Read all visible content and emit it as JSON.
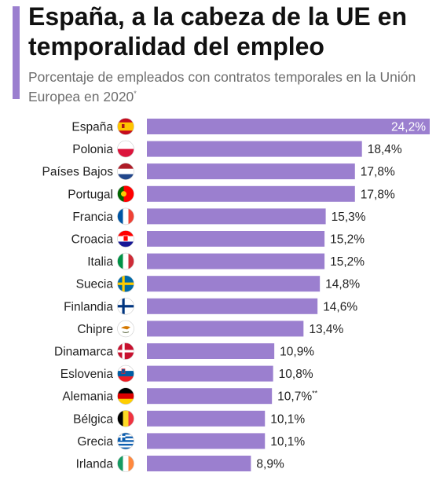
{
  "header": {
    "title": "España, a la cabeza de la UE en temporalidad del empleo",
    "subtitle": "Porcentaje de empleados con contratos temporales en la Unión Europea en 2020",
    "subtitle_marker": "*"
  },
  "colors": {
    "accent": "#9b7fcf",
    "bar": "#9b7fcf"
  },
  "chart_data": {
    "type": "bar",
    "orientation": "horizontal",
    "title": "España, a la cabeza de la UE en temporalidad del empleo",
    "subtitle": "Porcentaje de empleados con contratos temporales en la Unión Europea en 2020*",
    "categories": [
      "España",
      "Polonia",
      "Países Bajos",
      "Portugal",
      "Francia",
      "Croacia",
      "Italia",
      "Suecia",
      "Finlandia",
      "Chipre",
      "Dinamarca",
      "Eslovenia",
      "Alemania",
      "Bélgica",
      "Grecia",
      "Irlanda"
    ],
    "values": [
      24.2,
      18.4,
      17.8,
      17.8,
      15.3,
      15.2,
      15.2,
      14.8,
      14.6,
      13.4,
      10.9,
      10.8,
      10.7,
      10.1,
      10.1,
      8.9
    ],
    "value_labels": [
      "24,2%",
      "18,4%",
      "17,8%",
      "17,8%",
      "15,3%",
      "15,2%",
      "15,2%",
      "14,8%",
      "14,6%",
      "13,4%",
      "10,9%",
      "10,8%",
      "10,7%",
      "10,1%",
      "10,1%",
      "8,9%"
    ],
    "value_label_markers": [
      "",
      "",
      "",
      "",
      "",
      "",
      "",
      "",
      "",
      "",
      "",
      "",
      "**",
      "",
      "",
      ""
    ],
    "flag_icons": [
      "flag-spain-icon",
      "flag-poland-icon",
      "flag-netherlands-icon",
      "flag-portugal-icon",
      "flag-france-icon",
      "flag-croatia-icon",
      "flag-italy-icon",
      "flag-sweden-icon",
      "flag-finland-icon",
      "flag-cyprus-icon",
      "flag-denmark-icon",
      "flag-slovenia-icon",
      "flag-germany-icon",
      "flag-belgium-icon",
      "flag-greece-icon",
      "flag-ireland-icon"
    ],
    "xlim": [
      0,
      24.2
    ],
    "grid": false,
    "legend": "none"
  }
}
